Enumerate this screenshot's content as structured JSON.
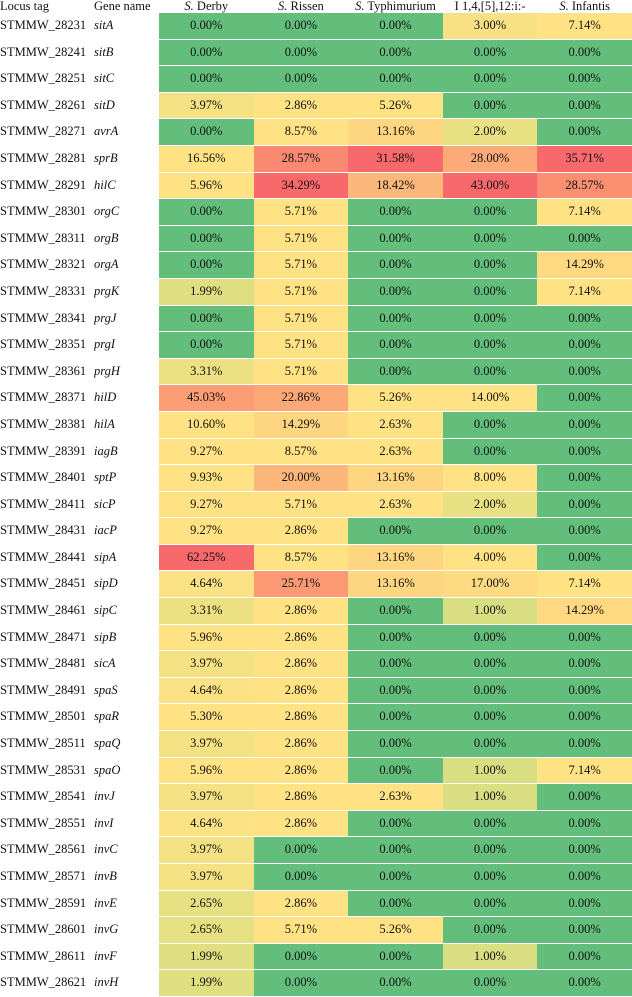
{
  "chart_data": {
    "type": "heatmap",
    "title": "",
    "columns": [
      "Locus tag",
      "Gene name",
      "S. Derby",
      "S. Rissen",
      "S. Typhimurium",
      "I 1,4,[5],12:i:-",
      "S. Infantis"
    ],
    "column_labels": [
      {
        "prefix": "",
        "italic": "",
        "text": "Locus tag"
      },
      {
        "prefix": "",
        "italic": "",
        "text": "Gene name"
      },
      {
        "prefix": "",
        "italic": "S.",
        "text": " Derby"
      },
      {
        "prefix": "",
        "italic": "S.",
        "text": " Rissen"
      },
      {
        "prefix": "",
        "italic": "S.",
        "text": " Typhimurium"
      },
      {
        "prefix": "",
        "italic": "",
        "text": "I 1,4,[5],12:i:-"
      },
      {
        "prefix": "",
        "italic": "S.",
        "text": " Infantis"
      }
    ],
    "series": [
      "S. Derby",
      "S. Rissen",
      "S. Typhimurium",
      "I 1,4,[5],12:i:-",
      "S. Infantis"
    ],
    "rows": [
      {
        "locus": "STMMW_28231",
        "gene": "sitA",
        "values": [
          0.0,
          0.0,
          0.0,
          3.0,
          7.14
        ]
      },
      {
        "locus": "STMMW_28241",
        "gene": "sitB",
        "values": [
          0.0,
          0.0,
          0.0,
          0.0,
          0.0
        ]
      },
      {
        "locus": "STMMW_28251",
        "gene": "sitC",
        "values": [
          0.0,
          0.0,
          0.0,
          0.0,
          0.0
        ]
      },
      {
        "locus": "STMMW_28261",
        "gene": "sitD",
        "values": [
          3.97,
          2.86,
          5.26,
          0.0,
          0.0
        ]
      },
      {
        "locus": "STMMW_28271",
        "gene": "avrA",
        "values": [
          0.0,
          8.57,
          13.16,
          2.0,
          0.0
        ]
      },
      {
        "locus": "STMMW_28281",
        "gene": "sprB",
        "values": [
          16.56,
          28.57,
          31.58,
          28.0,
          35.71
        ]
      },
      {
        "locus": "STMMW_28291",
        "gene": "hilC",
        "values": [
          5.96,
          34.29,
          18.42,
          43.0,
          28.57
        ]
      },
      {
        "locus": "STMMW_28301",
        "gene": "orgC",
        "values": [
          0.0,
          5.71,
          0.0,
          0.0,
          7.14
        ]
      },
      {
        "locus": "STMMW_28311",
        "gene": "orgB",
        "values": [
          0.0,
          5.71,
          0.0,
          0.0,
          0.0
        ]
      },
      {
        "locus": "STMMW_28321",
        "gene": "orgA",
        "values": [
          0.0,
          5.71,
          0.0,
          0.0,
          14.29
        ]
      },
      {
        "locus": "STMMW_28331",
        "gene": "prgK",
        "values": [
          1.99,
          5.71,
          0.0,
          0.0,
          7.14
        ]
      },
      {
        "locus": "STMMW_28341",
        "gene": "prgJ",
        "values": [
          0.0,
          5.71,
          0.0,
          0.0,
          0.0
        ]
      },
      {
        "locus": "STMMW_28351",
        "gene": "prgI",
        "values": [
          0.0,
          5.71,
          0.0,
          0.0,
          0.0
        ]
      },
      {
        "locus": "STMMW_28361",
        "gene": "prgH",
        "values": [
          3.31,
          5.71,
          0.0,
          0.0,
          0.0
        ]
      },
      {
        "locus": "STMMW_28371",
        "gene": "hilD",
        "values": [
          45.03,
          22.86,
          5.26,
          14.0,
          0.0
        ]
      },
      {
        "locus": "STMMW_28381",
        "gene": "hilA",
        "values": [
          10.6,
          14.29,
          2.63,
          0.0,
          0.0
        ]
      },
      {
        "locus": "STMMW_28391",
        "gene": "iagB",
        "values": [
          9.27,
          8.57,
          2.63,
          0.0,
          0.0
        ]
      },
      {
        "locus": "STMMW_28401",
        "gene": "sptP",
        "values": [
          9.93,
          20.0,
          13.16,
          8.0,
          0.0
        ]
      },
      {
        "locus": "STMMW_28411",
        "gene": "sicP",
        "values": [
          9.27,
          5.71,
          2.63,
          2.0,
          0.0
        ]
      },
      {
        "locus": "STMMW_28431",
        "gene": "iacP",
        "values": [
          9.27,
          2.86,
          0.0,
          0.0,
          0.0
        ]
      },
      {
        "locus": "STMMW_28441",
        "gene": "sipA",
        "values": [
          62.25,
          8.57,
          13.16,
          4.0,
          0.0
        ]
      },
      {
        "locus": "STMMW_28451",
        "gene": "sipD",
        "values": [
          4.64,
          25.71,
          13.16,
          17.0,
          7.14
        ]
      },
      {
        "locus": "STMMW_28461",
        "gene": "sipC",
        "values": [
          3.31,
          2.86,
          0.0,
          1.0,
          14.29
        ]
      },
      {
        "locus": "STMMW_28471",
        "gene": "sipB",
        "values": [
          5.96,
          2.86,
          0.0,
          0.0,
          0.0
        ]
      },
      {
        "locus": "STMMW_28481",
        "gene": "sicA",
        "values": [
          3.97,
          2.86,
          0.0,
          0.0,
          0.0
        ]
      },
      {
        "locus": "STMMW_28491",
        "gene": "spaS",
        "values": [
          4.64,
          2.86,
          0.0,
          0.0,
          0.0
        ]
      },
      {
        "locus": "STMMW_28501",
        "gene": "spaR",
        "values": [
          5.3,
          2.86,
          0.0,
          0.0,
          0.0
        ]
      },
      {
        "locus": "STMMW_28511",
        "gene": "spaQ",
        "values": [
          3.97,
          2.86,
          0.0,
          0.0,
          0.0
        ]
      },
      {
        "locus": "STMMW_28531",
        "gene": "spaO",
        "values": [
          5.96,
          2.86,
          0.0,
          1.0,
          7.14
        ]
      },
      {
        "locus": "STMMW_28541",
        "gene": "invJ",
        "values": [
          3.97,
          2.86,
          2.63,
          1.0,
          0.0
        ]
      },
      {
        "locus": "STMMW_28551",
        "gene": "invI",
        "values": [
          4.64,
          2.86,
          0.0,
          0.0,
          0.0
        ]
      },
      {
        "locus": "STMMW_28561",
        "gene": "invC",
        "values": [
          3.97,
          0.0,
          0.0,
          0.0,
          0.0
        ]
      },
      {
        "locus": "STMMW_28571",
        "gene": "invB",
        "values": [
          3.97,
          0.0,
          0.0,
          0.0,
          0.0
        ]
      },
      {
        "locus": "STMMW_28591",
        "gene": "invE",
        "values": [
          2.65,
          2.86,
          0.0,
          0.0,
          0.0
        ]
      },
      {
        "locus": "STMMW_28601",
        "gene": "invG",
        "values": [
          2.65,
          5.71,
          5.26,
          0.0,
          0.0
        ]
      },
      {
        "locus": "STMMW_28611",
        "gene": "invF",
        "values": [
          1.99,
          0.0,
          0.0,
          1.0,
          0.0
        ]
      },
      {
        "locus": "STMMW_28621",
        "gene": "invH",
        "values": [
          1.99,
          0.0,
          0.0,
          0.0,
          0.0
        ]
      }
    ],
    "value_format": "percent_2dp",
    "color_scale": {
      "zero": "#63be7b",
      "low": "#c9dd81",
      "mid": "#ffe284",
      "high": "#fba276",
      "max": "#f8696b"
    }
  }
}
